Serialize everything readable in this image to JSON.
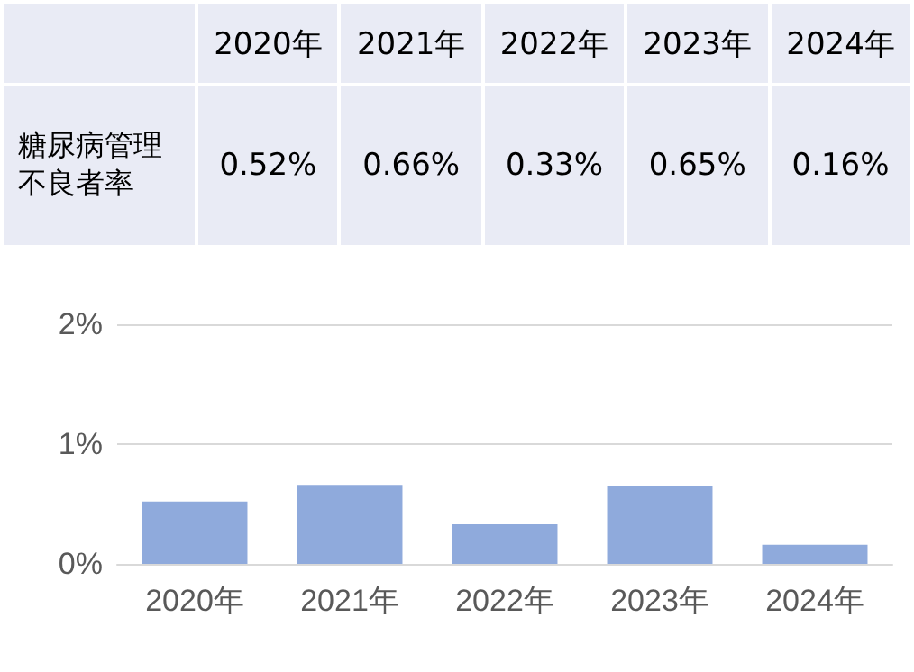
{
  "chart_data": {
    "type": "bar",
    "categories": [
      "2020年",
      "2021年",
      "2022年",
      "2023年",
      "2024年"
    ],
    "series": [
      {
        "name": "糖尿病管理不良者率",
        "color": "#8faadc",
        "values": [
          0.52,
          0.66,
          0.33,
          0.65,
          0.16
        ],
        "value_labels": [
          "0.52%",
          "0.66%",
          "0.33%",
          "0.65%",
          "0.16%"
        ]
      }
    ],
    "ylim": [
      0,
      2
    ],
    "yticks": [
      {
        "value": 0,
        "label": "0%"
      },
      {
        "value": 1,
        "label": "1%"
      },
      {
        "value": 2,
        "label": "2%"
      }
    ],
    "grid": "y",
    "legend": false
  }
}
